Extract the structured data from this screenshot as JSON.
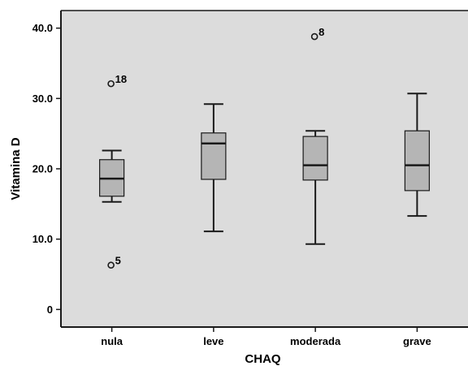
{
  "chart_data": {
    "type": "boxplot",
    "title": "",
    "xlabel": "CHAQ",
    "ylabel": "Vitamina D",
    "ylim": [
      -2.5,
      42.5
    ],
    "yticks": [
      {
        "value": 0,
        "label": "0"
      },
      {
        "value": 10,
        "label": "10.0"
      },
      {
        "value": 20,
        "label": "20.0"
      },
      {
        "value": 30,
        "label": "30.0"
      },
      {
        "value": 40,
        "label": "40.0"
      }
    ],
    "categories": [
      "nula",
      "leve",
      "moderada",
      "grave"
    ],
    "boxes": [
      {
        "category": "nula",
        "whisker_low": 15.3,
        "q1": 16.1,
        "median": 18.6,
        "q3": 21.3,
        "whisker_high": 22.6,
        "outliers": [
          {
            "value": 32.1,
            "label": "18"
          },
          {
            "value": 6.3,
            "label": "5"
          }
        ]
      },
      {
        "category": "leve",
        "whisker_low": 11.1,
        "q1": 18.5,
        "median": 23.6,
        "q3": 25.1,
        "whisker_high": 29.2,
        "outliers": []
      },
      {
        "category": "moderada",
        "whisker_low": 9.3,
        "q1": 18.4,
        "median": 20.5,
        "q3": 24.6,
        "whisker_high": 25.4,
        "outliers": [
          {
            "value": 38.8,
            "label": "8"
          }
        ]
      },
      {
        "category": "grave",
        "whisker_low": 13.3,
        "q1": 16.9,
        "median": 20.5,
        "q3": 25.4,
        "whisker_high": 30.7,
        "outliers": []
      }
    ],
    "grid": false,
    "legend": "none",
    "colors": {
      "plot_background": "#dcdcdc",
      "box_fill": "#b5b5b5",
      "stroke": "#1a1a1a"
    }
  }
}
